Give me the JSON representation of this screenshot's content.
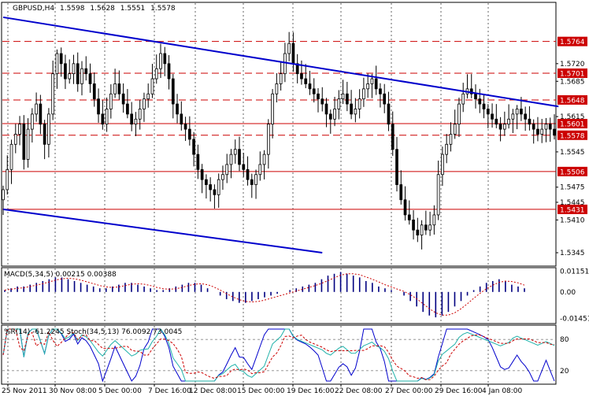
{
  "chart_data": {
    "type": "candlestick",
    "header": {
      "symbol": "GBPUSD,H4",
      "open": "1.5598",
      "high": "1.5628",
      "low": "1.5551",
      "close": "1.5578"
    },
    "price_panel": {
      "ylim": [
        1.532,
        1.584
      ],
      "y_ticks": [
        "1.5720",
        "1.5685",
        "1.5615",
        "1.5545",
        "1.5475",
        "1.5445",
        "1.5410",
        "1.5345"
      ],
      "horizontal_levels": [
        {
          "value": 1.5764,
          "label": "1.5764",
          "style": "dashed"
        },
        {
          "value": 1.5701,
          "label": "1.5701",
          "style": "dashed"
        },
        {
          "value": 1.5648,
          "label": "1.5648",
          "style": "dashed"
        },
        {
          "value": 1.5601,
          "label": "1.5601",
          "style": "solid"
        },
        {
          "value": 1.5578,
          "label": "1.5578",
          "style": "dashed"
        },
        {
          "value": 1.5506,
          "label": "1.5506",
          "style": "solid"
        },
        {
          "value": 1.5431,
          "label": "1.5431",
          "style": "solid"
        }
      ],
      "level_color": "#cc0000",
      "trendline_color": "#0000cc",
      "trendlines": [
        {
          "from": [
            0,
            1.5812
          ],
          "to": [
            134,
            1.5635
          ]
        },
        {
          "from": [
            0,
            1.5431
          ],
          "to": [
            77,
            1.5345
          ]
        }
      ],
      "bar_count": 134,
      "close_series": [
        1.547,
        1.551,
        1.556,
        1.558,
        1.56,
        1.553,
        1.559,
        1.562,
        1.564,
        1.56,
        1.556,
        1.562,
        1.57,
        1.574,
        1.572,
        1.569,
        1.57,
        1.572,
        1.568,
        1.571,
        1.57,
        1.568,
        1.565,
        1.562,
        1.56,
        1.563,
        1.566,
        1.568,
        1.566,
        1.564,
        1.562,
        1.56,
        1.561,
        1.563,
        1.565,
        1.566,
        1.569,
        1.571,
        1.574,
        1.572,
        1.569,
        1.564,
        1.562,
        1.56,
        1.559,
        1.557,
        1.554,
        1.551,
        1.549,
        1.548,
        1.547,
        1.546,
        1.549,
        1.55,
        1.552,
        1.554,
        1.555,
        1.552,
        1.551,
        1.549,
        1.548,
        1.55,
        1.552,
        1.554,
        1.56,
        1.566,
        1.568,
        1.57,
        1.574,
        1.576,
        1.572,
        1.57,
        1.569,
        1.568,
        1.567,
        1.566,
        1.565,
        1.564,
        1.562,
        1.561,
        1.563,
        1.565,
        1.566,
        1.564,
        1.562,
        1.563,
        1.565,
        1.567,
        1.568,
        1.569,
        1.567,
        1.566,
        1.564,
        1.56,
        1.555,
        1.548,
        1.545,
        1.542,
        1.541,
        1.539,
        1.538,
        1.54,
        1.539,
        1.54,
        1.542,
        1.55,
        1.554,
        1.556,
        1.558,
        1.56,
        1.564,
        1.566,
        1.567,
        1.566,
        1.565,
        1.564,
        1.563,
        1.562,
        1.561,
        1.56,
        1.559,
        1.56,
        1.561,
        1.562,
        1.563,
        1.562,
        1.561,
        1.56,
        1.559,
        1.558,
        1.559,
        1.56,
        1.559,
        1.5578
      ]
    },
    "macd_panel": {
      "label": "MACD(5,34,5) 0.00215 0.00388",
      "ylim": [
        -0.017,
        0.0125
      ],
      "y_ticks": [
        "0.01151",
        "0.00",
        "-0.01451"
      ],
      "histogram_color": "#000080",
      "signal_color": "#cc0000",
      "histogram_profile": [
        0.001,
        0.002,
        0.003,
        0.003,
        0.004,
        0.005,
        0.006,
        0.007,
        0.008,
        0.008,
        0.007,
        0.006,
        0.005,
        0.004,
        0.003,
        0.002,
        0.002,
        0.003,
        0.004,
        0.005,
        0.005,
        0.004,
        0.003,
        0.002,
        0.001,
        0.001,
        0.002,
        0.003,
        0.004,
        0.005,
        0.005,
        0.004,
        0.002,
        0.0,
        -0.002,
        -0.004,
        -0.005,
        -0.006,
        -0.006,
        -0.005,
        -0.004,
        -0.003,
        -0.002,
        -0.001,
        0.0,
        0.001,
        0.002,
        0.003,
        0.004,
        0.005,
        0.007,
        0.009,
        0.01,
        0.011,
        0.01,
        0.009,
        0.008,
        0.006,
        0.005,
        0.003,
        0.002,
        0.001,
        0.0,
        -0.002,
        -0.005,
        -0.008,
        -0.011,
        -0.013,
        -0.014,
        -0.013,
        -0.011,
        -0.008,
        -0.005,
        -0.002,
        0.001,
        0.003,
        0.005,
        0.006,
        0.007,
        0.006,
        0.004,
        0.003,
        0.002
      ]
    },
    "oscillator_panel": {
      "label": "%R(14) -61.2245  Stoch(34,5,13) 76.0092 73.0045",
      "y_ticks": [
        "80",
        "20"
      ],
      "levels": [
        80,
        20
      ],
      "wpr_color": "#0000cc",
      "stoch_main_color": "#20b2aa",
      "stoch_signal_color": "#cc0000"
    },
    "x_ticks": [
      "25 Nov 2011",
      "30 Nov 08:00",
      "5 Dec 00:00",
      "7 Dec 16:00",
      "12 Dec 08:00",
      "15 Dec 00:00",
      "19 Dec 16:00",
      "22 Dec 08:00",
      "27 Dec 00:00",
      "29 Dec 16:00",
      "4 Jan 08:00"
    ]
  }
}
